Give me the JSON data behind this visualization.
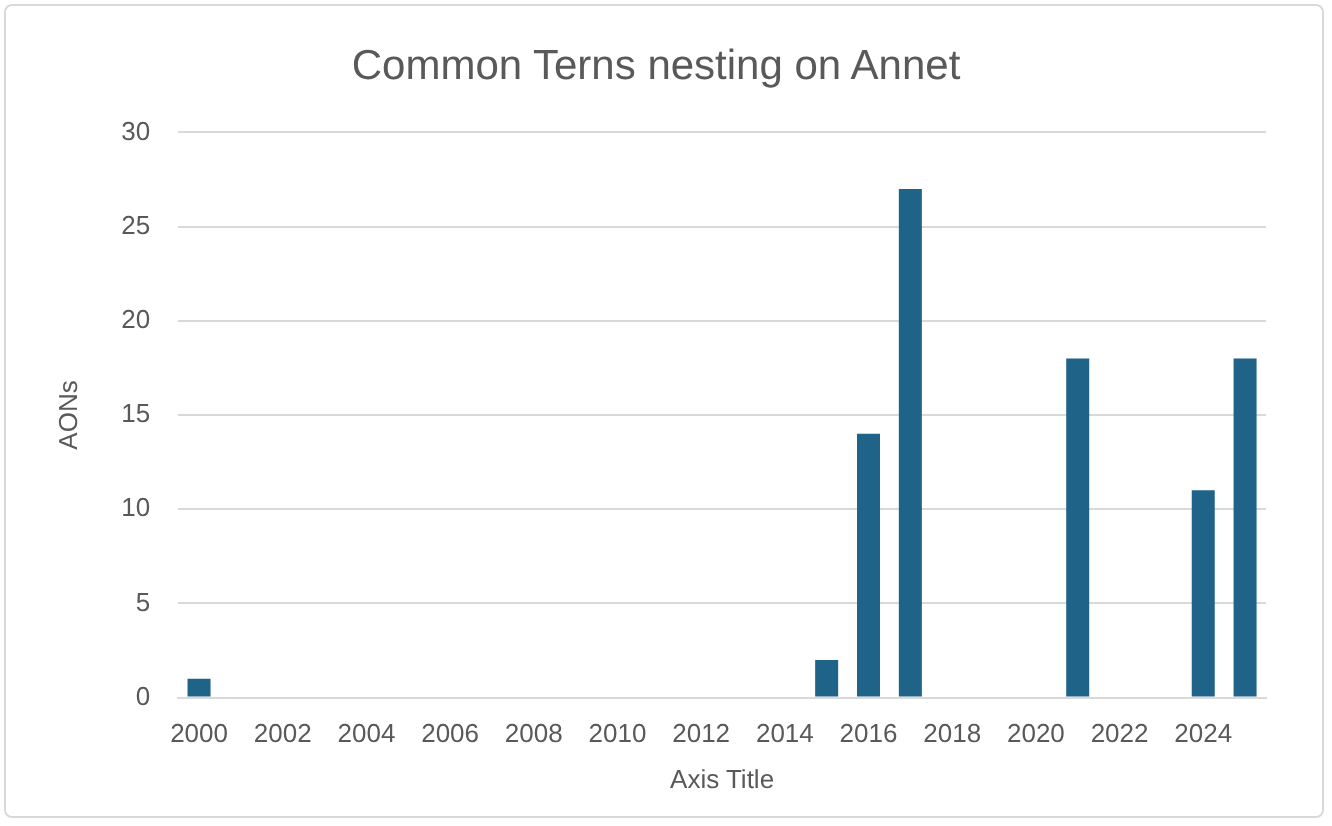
{
  "chart_data": {
    "type": "bar",
    "title": "Common Terns nesting on Annet",
    "xlabel": "Axis Title",
    "ylabel": "AONs",
    "categories": [
      "2000",
      null,
      "2002",
      null,
      "2004",
      null,
      "2006",
      null,
      "2008",
      null,
      "2010",
      null,
      "2012",
      null,
      "2014",
      null,
      "2016",
      null,
      "2018",
      null,
      "2020",
      null,
      "2022",
      null,
      "2024",
      null
    ],
    "values": [
      1,
      null,
      null,
      null,
      null,
      null,
      null,
      null,
      null,
      null,
      null,
      null,
      null,
      null,
      null,
      2,
      14,
      27,
      null,
      null,
      null,
      18,
      null,
      null,
      11,
      18
    ],
    "color": "#1f6388",
    "ylim": [
      0,
      30
    ],
    "yticks": [
      0,
      5,
      10,
      15,
      20,
      25,
      30
    ],
    "grid": "y",
    "legend": false
  }
}
